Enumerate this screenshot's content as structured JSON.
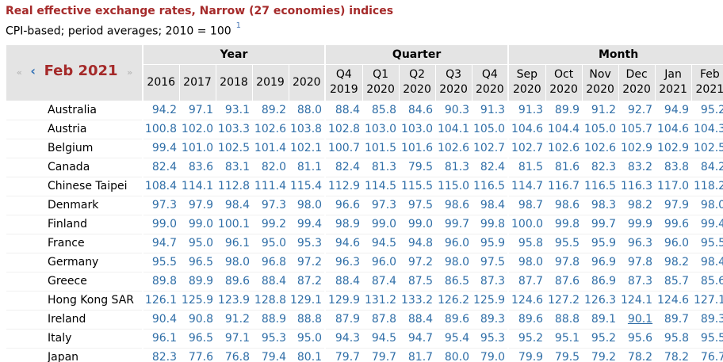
{
  "title": "Real effective exchange rates, Narrow (27 economies) indices",
  "subtitle": "CPI-based; period averages; 2010 = 100",
  "footnote_marker": "1",
  "nav": {
    "first": "«",
    "prev": "‹",
    "period": "Feb 2021",
    "next": "»"
  },
  "groups": [
    {
      "label": "Year"
    },
    {
      "label": "Quarter"
    },
    {
      "label": "Month"
    }
  ],
  "columns": [
    {
      "line1": "2016",
      "line2": ""
    },
    {
      "line1": "2017",
      "line2": ""
    },
    {
      "line1": "2018",
      "line2": ""
    },
    {
      "line1": "2019",
      "line2": ""
    },
    {
      "line1": "2020",
      "line2": ""
    },
    {
      "line1": "Q4",
      "line2": "2019"
    },
    {
      "line1": "Q1",
      "line2": "2020"
    },
    {
      "line1": "Q2",
      "line2": "2020"
    },
    {
      "line1": "Q3",
      "line2": "2020"
    },
    {
      "line1": "Q4",
      "line2": "2020"
    },
    {
      "line1": "Sep",
      "line2": "2020"
    },
    {
      "line1": "Oct",
      "line2": "2020"
    },
    {
      "line1": "Nov",
      "line2": "2020"
    },
    {
      "line1": "Dec",
      "line2": "2020"
    },
    {
      "line1": "Jan",
      "line2": "2021"
    },
    {
      "line1": "Feb",
      "line2": "2021"
    }
  ],
  "rows": [
    {
      "country": "Australia",
      "values": [
        "94.2",
        "97.1",
        "93.1",
        "89.2",
        "88.0",
        "88.4",
        "85.8",
        "84.6",
        "90.3",
        "91.3",
        "91.3",
        "89.9",
        "91.2",
        "92.7",
        "94.9",
        "95.2"
      ]
    },
    {
      "country": "Austria",
      "values": [
        "100.8",
        "102.0",
        "103.3",
        "102.6",
        "103.8",
        "102.8",
        "103.0",
        "103.0",
        "104.1",
        "105.0",
        "104.6",
        "104.4",
        "105.0",
        "105.7",
        "104.6",
        "104.3"
      ]
    },
    {
      "country": "Belgium",
      "values": [
        "99.4",
        "101.0",
        "102.5",
        "101.4",
        "102.1",
        "100.7",
        "101.5",
        "101.6",
        "102.6",
        "102.7",
        "102.7",
        "102.6",
        "102.6",
        "102.9",
        "102.9",
        "102.5"
      ]
    },
    {
      "country": "Canada",
      "values": [
        "82.4",
        "83.6",
        "83.1",
        "82.0",
        "81.1",
        "82.4",
        "81.3",
        "79.5",
        "81.3",
        "82.4",
        "81.5",
        "81.6",
        "82.3",
        "83.2",
        "83.8",
        "84.2"
      ]
    },
    {
      "country": "Chinese Taipei",
      "values": [
        "108.4",
        "114.1",
        "112.8",
        "111.4",
        "115.4",
        "112.9",
        "114.5",
        "115.5",
        "115.0",
        "116.5",
        "114.7",
        "116.7",
        "116.5",
        "116.3",
        "117.0",
        "118.2"
      ]
    },
    {
      "country": "Denmark",
      "values": [
        "97.3",
        "97.9",
        "98.4",
        "97.3",
        "98.0",
        "96.6",
        "97.3",
        "97.5",
        "98.6",
        "98.4",
        "98.7",
        "98.6",
        "98.3",
        "98.2",
        "97.9",
        "98.0"
      ]
    },
    {
      "country": "Finland",
      "values": [
        "99.0",
        "99.0",
        "100.1",
        "99.2",
        "99.4",
        "98.9",
        "99.0",
        "99.0",
        "99.7",
        "99.8",
        "100.0",
        "99.8",
        "99.7",
        "99.9",
        "99.6",
        "99.4"
      ]
    },
    {
      "country": "France",
      "values": [
        "94.7",
        "95.0",
        "96.1",
        "95.0",
        "95.3",
        "94.6",
        "94.5",
        "94.8",
        "96.0",
        "95.9",
        "95.8",
        "95.5",
        "95.9",
        "96.3",
        "96.0",
        "95.5"
      ]
    },
    {
      "country": "Germany",
      "values": [
        "95.5",
        "96.5",
        "98.0",
        "96.8",
        "97.2",
        "96.3",
        "96.0",
        "97.2",
        "98.0",
        "97.5",
        "98.0",
        "97.8",
        "96.9",
        "97.8",
        "98.2",
        "98.4"
      ]
    },
    {
      "country": "Greece",
      "values": [
        "89.8",
        "89.9",
        "89.6",
        "88.4",
        "87.2",
        "88.4",
        "87.4",
        "87.5",
        "86.5",
        "87.3",
        "87.7",
        "87.6",
        "86.9",
        "87.3",
        "85.7",
        "85.6"
      ]
    },
    {
      "country": "Hong Kong SAR",
      "values": [
        "126.1",
        "125.9",
        "123.9",
        "128.8",
        "129.1",
        "129.9",
        "131.2",
        "133.2",
        "126.2",
        "125.9",
        "124.6",
        "127.2",
        "126.3",
        "124.1",
        "124.6",
        "127.1"
      ]
    },
    {
      "country": "Ireland",
      "values": [
        "90.4",
        "90.8",
        "91.2",
        "88.9",
        "88.8",
        "87.9",
        "87.8",
        "88.4",
        "89.6",
        "89.3",
        "89.6",
        "88.8",
        "89.1",
        "90.1",
        "89.7",
        "89.3"
      ]
    },
    {
      "country": "Italy",
      "values": [
        "96.1",
        "96.5",
        "97.1",
        "95.3",
        "95.0",
        "94.3",
        "94.5",
        "94.7",
        "95.4",
        "95.3",
        "95.2",
        "95.1",
        "95.2",
        "95.6",
        "95.8",
        "95.5"
      ]
    },
    {
      "country": "Japan",
      "values": [
        "82.3",
        "77.6",
        "76.8",
        "79.4",
        "80.1",
        "79.7",
        "79.7",
        "81.7",
        "80.0",
        "79.0",
        "79.9",
        "79.5",
        "79.2",
        "78.2",
        "78.2",
        "76.7"
      ]
    }
  ],
  "colors": {
    "title": "#a52a2a",
    "value": "#2f6ea7",
    "header_bg": "#e4e4e4",
    "nav_arrow": "#2f6fb5"
  }
}
